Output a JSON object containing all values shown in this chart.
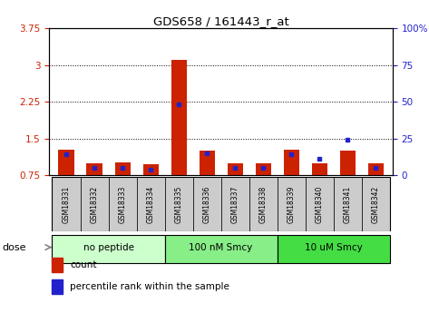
{
  "title": "GDS658 / 161443_r_at",
  "samples": [
    "GSM18331",
    "GSM18332",
    "GSM18333",
    "GSM18334",
    "GSM18335",
    "GSM18336",
    "GSM18337",
    "GSM18338",
    "GSM18339",
    "GSM18340",
    "GSM18341",
    "GSM18342"
  ],
  "count_values": [
    1.27,
    1.0,
    1.02,
    0.98,
    3.1,
    1.25,
    1.0,
    0.99,
    1.27,
    1.0,
    1.25,
    1.0
  ],
  "percentile_values": [
    14,
    5,
    5,
    4,
    48,
    15,
    5,
    5,
    14,
    11,
    24,
    5
  ],
  "baseline": 0.75,
  "ylim_left": [
    0.75,
    3.75
  ],
  "ylim_right": [
    0,
    100
  ],
  "yticks_left": [
    0.75,
    1.5,
    2.25,
    3.0,
    3.75
  ],
  "yticks_left_labels": [
    "0.75",
    "1.5",
    "2.25",
    "3",
    "3.75"
  ],
  "yticks_right": [
    0,
    25,
    50,
    75,
    100
  ],
  "yticks_right_labels": [
    "0",
    "25",
    "50",
    "75",
    "100%"
  ],
  "grid_lines": [
    1.5,
    2.25,
    3.0
  ],
  "groups": [
    {
      "label": "no peptide",
      "start": 0,
      "end": 4,
      "color": "#ccffcc"
    },
    {
      "label": "100 nM Smcy",
      "start": 4,
      "end": 8,
      "color": "#88ee88"
    },
    {
      "label": "10 uM Smcy",
      "start": 8,
      "end": 12,
      "color": "#44dd44"
    }
  ],
  "bar_color": "#cc2200",
  "dot_color": "#2222cc",
  "bar_width": 0.55,
  "dose_label": "dose",
  "legend_count": "count",
  "legend_percentile": "percentile rank within the sample",
  "tick_color_left": "#cc2200",
  "tick_color_right": "#2222cc",
  "sample_box_color": "#cccccc",
  "plot_bg": "#ffffff"
}
